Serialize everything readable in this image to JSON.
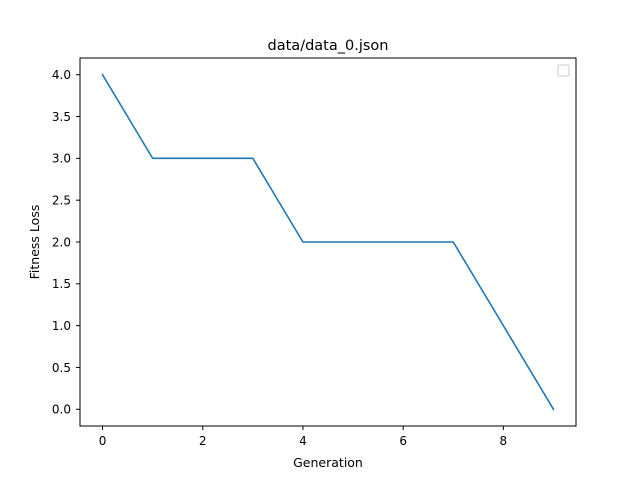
{
  "chart_data": {
    "type": "line",
    "title": "data/data_0.json",
    "xlabel": "Generation",
    "ylabel": "Fitness Loss",
    "x": [
      0,
      1,
      2,
      3,
      4,
      5,
      6,
      7,
      8,
      9
    ],
    "series": [
      {
        "values": [
          4.0,
          3.0,
          3.0,
          3.0,
          2.0,
          2.0,
          2.0,
          2.0,
          1.0,
          0.0
        ],
        "color": "#1f77b4"
      }
    ],
    "xlim": [
      -0.45,
      9.45
    ],
    "ylim": [
      -0.2,
      4.2
    ],
    "xticks": [
      0,
      2,
      4,
      6,
      8
    ],
    "xtick_labels": [
      "0",
      "2",
      "4",
      "6",
      "8"
    ],
    "yticks": [
      0.0,
      0.5,
      1.0,
      1.5,
      2.0,
      2.5,
      3.0,
      3.5,
      4.0
    ],
    "ytick_labels": [
      "0.0",
      "0.5",
      "1.0",
      "1.5",
      "2.0",
      "2.5",
      "3.0",
      "3.5",
      "4.0"
    ],
    "grid": false,
    "legend": {
      "placement": "upper right",
      "entries": []
    }
  }
}
